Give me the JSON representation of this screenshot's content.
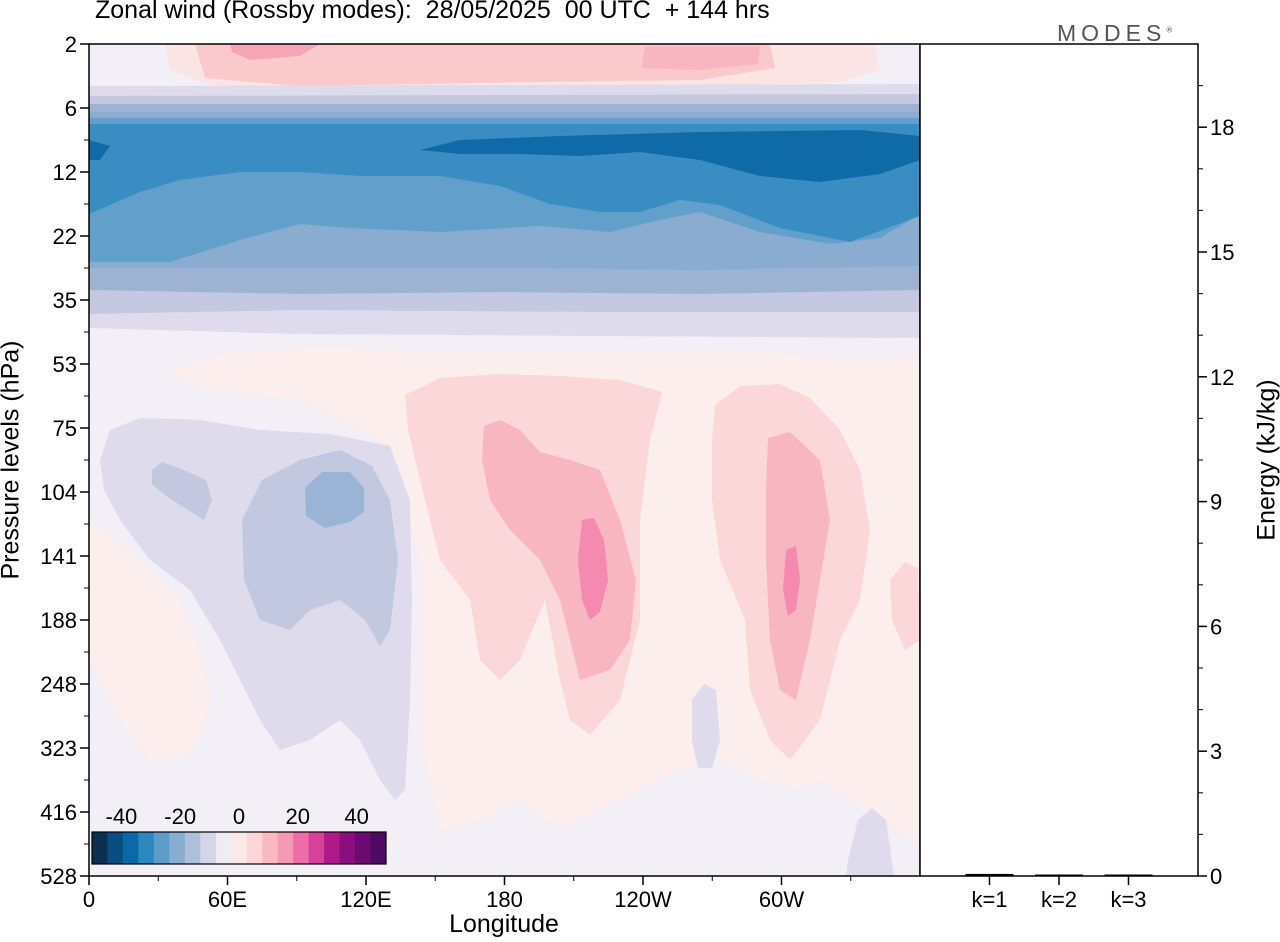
{
  "title": "Zonal wind (Rossby modes):  28/05/2025  00 UTC  + 144 hrs",
  "logo": "MODES",
  "logo_mark": "®",
  "chart_data": [
    {
      "type": "heatmap",
      "title": "Zonal wind (Rossby modes):  28/05/2025  00 UTC  + 144 hrs",
      "xlabel": "Longitude",
      "ylabel": "Pressure levels (hPa)",
      "x_ticks": [
        "0",
        "60E",
        "120E",
        "180",
        "120W",
        "60W"
      ],
      "x_tick_degrees": [
        0,
        60,
        120,
        180,
        240,
        300
      ],
      "xlim": [
        0,
        360
      ],
      "y_ticks": [
        2,
        6,
        12,
        22,
        35,
        53,
        75,
        104,
        141,
        188,
        248,
        323,
        416,
        528
      ],
      "y_scale": "pressure levels, top to bottom",
      "colorbar": {
        "ticks": [
          -40,
          -20,
          0,
          20,
          40
        ],
        "range": [
          -50,
          50
        ],
        "step": 5,
        "placement": "bottom-left inside plot",
        "colors": [
          "#0d2f4f",
          "#0a4d80",
          "#0a6aa7",
          "#2d88bf",
          "#5e9dc9",
          "#88adcf",
          "#aebfdc",
          "#d3d6e8",
          "#eeebf3",
          "#fbe9e9",
          "#fcd6d8",
          "#f9b9c0",
          "#f699b3",
          "#ee6ea7",
          "#d7409b",
          "#b01a88",
          "#8a0e7d",
          "#6a0a72",
          "#4e0a63"
        ]
      },
      "regions": [
        {
          "lon": 42,
          "level": 2,
          "value": 20
        },
        {
          "lon": 230,
          "level": 2,
          "value": 15
        },
        {
          "lon": 0,
          "level": 6,
          "value": -10
        },
        {
          "lon": 180,
          "level": 10,
          "value": -35
        },
        {
          "lon": 290,
          "level": 12,
          "value": -35
        },
        {
          "lon": 180,
          "level": 22,
          "value": -20
        },
        {
          "lon": 180,
          "level": 35,
          "value": -5
        },
        {
          "lon": 180,
          "level": 53,
          "value": 2
        },
        {
          "lon": 35,
          "level": 104,
          "value": -8
        },
        {
          "lon": 105,
          "level": 120,
          "value": -15
        },
        {
          "lon": 200,
          "level": 104,
          "value": 5
        },
        {
          "lon": 220,
          "level": 141,
          "value": 20
        },
        {
          "lon": 300,
          "level": 104,
          "value": 5
        },
        {
          "lon": 305,
          "level": 141,
          "value": 20
        }
      ]
    },
    {
      "type": "bar",
      "categories": [
        "k=1",
        "k=2",
        "k=3"
      ],
      "values": [
        0.05,
        0.03,
        0.02
      ],
      "ylabel": "Energy (kJ/kg)",
      "y_ticks": [
        0,
        3,
        6,
        9,
        12,
        15,
        18
      ],
      "ylim": [
        0,
        20
      ]
    }
  ]
}
